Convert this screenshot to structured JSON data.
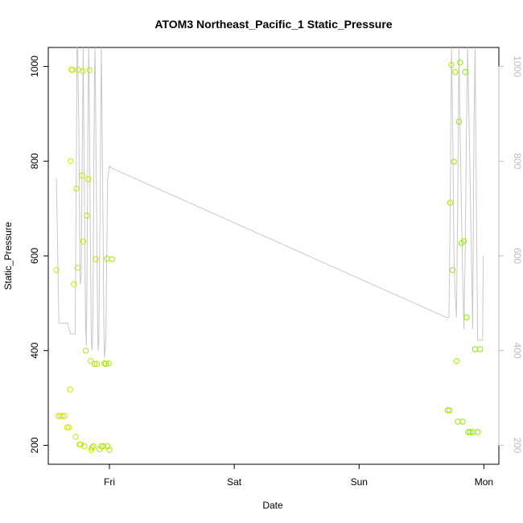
{
  "chart_data": {
    "type": "scatter",
    "title": "ATOM3 Northeast_Pacific_1 Static_Pressure",
    "xlabel": "Date",
    "ylabel": "Static_Pressure",
    "x_ticks": [
      {
        "label": "Fri",
        "value": 1.0
      },
      {
        "label": "Sat",
        "value": 2.0
      },
      {
        "label": "Sun",
        "value": 3.0
      },
      {
        "label": "Mon",
        "value": 4.0
      }
    ],
    "xlim": [
      0.51,
      4.12
    ],
    "ylim": [
      160,
      1040
    ],
    "y_ticks": [
      200,
      400,
      600,
      800,
      1000
    ],
    "y2_ticks": [
      200,
      400,
      600,
      800,
      1000
    ],
    "y2lim": [
      1040,
      160
    ],
    "grid": false,
    "colors": {
      "line": "#c8c8c8",
      "points_start": "#d7e600",
      "points_end": "#88e800",
      "right_axis": "#bdbdbd"
    },
    "series": [
      {
        "type": "line",
        "x": [
          0.575,
          0.595,
          0.64,
          0.665,
          0.675,
          0.69,
          0.7,
          0.71,
          0.725,
          0.735,
          0.74,
          0.745,
          0.755,
          0.76,
          0.765,
          0.775,
          0.78,
          0.785,
          0.79,
          0.795,
          0.8,
          0.805,
          0.81,
          0.815,
          0.82,
          0.825,
          0.83,
          0.835,
          0.84,
          0.845,
          0.85,
          0.855,
          0.86,
          0.865,
          0.87,
          0.875,
          0.88,
          0.885,
          0.89,
          0.895,
          0.9,
          0.905,
          0.91,
          0.915,
          0.92,
          0.925,
          0.93,
          0.935,
          0.94,
          0.945,
          0.95,
          0.955,
          0.96,
          0.965,
          0.97,
          0.975,
          0.98,
          0.985,
          1.0,
          1.02,
          3.7,
          3.72,
          3.73,
          3.74,
          3.75,
          3.76,
          3.77,
          3.78,
          3.79,
          3.8,
          3.81,
          3.82,
          3.83,
          3.84,
          3.85,
          3.86,
          3.87,
          3.88,
          3.9,
          3.91,
          3.92,
          3.93,
          3.94,
          3.95,
          3.96,
          3.97,
          3.98,
          3.99,
          3.995
        ],
        "y": [
          765,
          458,
          458,
          458,
          447,
          435,
          435,
          435,
          435,
          800,
          1040,
          1040,
          870,
          700,
          540,
          560,
          780,
          900,
          1040,
          870,
          700,
          540,
          450,
          410,
          560,
          760,
          960,
          1040,
          880,
          700,
          560,
          420,
          400,
          420,
          560,
          780,
          980,
          1040,
          900,
          760,
          620,
          460,
          400,
          420,
          560,
          700,
          880,
          1040,
          920,
          760,
          620,
          460,
          385,
          400,
          420,
          500,
          640,
          760,
          790,
          785,
          470,
          470,
          700,
          1040,
          880,
          600,
          520,
          470,
          700,
          1040,
          860,
          700,
          560,
          445,
          600,
          860,
          1040,
          900,
          600,
          445,
          860,
          1040,
          700,
          422,
          422,
          422,
          422,
          422,
          600
        ]
      },
      {
        "type": "points",
        "x": [
          0.575,
          0.59,
          0.605,
          0.62,
          0.64,
          0.66,
          0.675,
          0.685,
          0.69,
          0.695,
          0.705,
          0.715,
          0.73,
          0.735,
          0.745,
          0.75,
          0.76,
          0.77,
          0.78,
          0.785,
          0.79,
          0.8,
          0.81,
          0.82,
          0.83,
          0.84,
          0.85,
          0.855,
          0.86,
          0.87,
          0.88,
          0.89,
          0.9,
          0.92,
          0.935,
          0.95,
          0.96,
          0.97,
          0.98,
          0.985,
          0.995,
          1.0,
          1.02,
          3.71,
          3.725,
          3.73,
          3.74,
          3.75,
          3.76,
          3.77,
          3.78,
          3.79,
          3.8,
          3.81,
          3.82,
          3.83,
          3.84,
          3.85,
          3.86,
          3.875,
          3.89,
          3.91,
          3.93,
          3.95,
          3.97
        ],
        "y": [
          570,
          262,
          262,
          262,
          262,
          238,
          238,
          318,
          800,
          993,
          993,
          540,
          218,
          742,
          575,
          993,
          202,
          202,
          770,
          990,
          630,
          198,
          400,
          685,
          762,
          992,
          378,
          190,
          195,
          198,
          372,
          593,
          372,
          192,
          198,
          198,
          373,
          372,
          594,
          198,
          373,
          190,
          593,
          274,
          274,
          712,
          1003,
          570,
          799,
          988,
          378,
          250,
          883,
          1008,
          627,
          250,
          631,
          988,
          470,
          228,
          228,
          228,
          403,
          228,
          403
        ]
      }
    ]
  }
}
